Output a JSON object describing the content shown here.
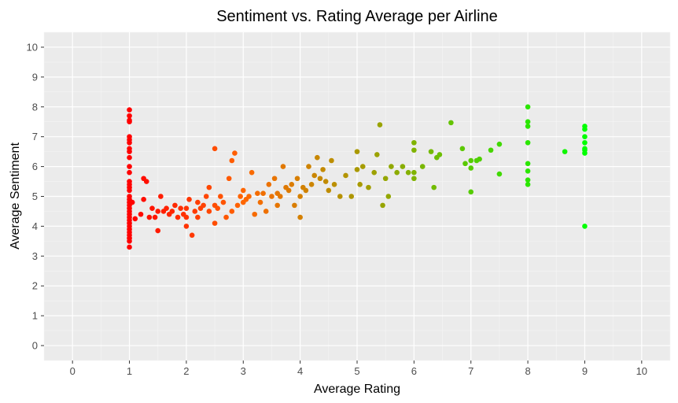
{
  "chart_data": {
    "type": "scatter",
    "title": "Sentiment vs. Rating Average per Airline",
    "xlabel": "Average Rating",
    "ylabel": "Average Sentiment",
    "xlim": [
      -0.5,
      10.5
    ],
    "ylim": [
      -0.5,
      10.5
    ],
    "x_ticks": [
      "0",
      "1",
      "2",
      "3",
      "4",
      "5",
      "6",
      "7",
      "8",
      "9",
      "10"
    ],
    "y_ticks": [
      "0",
      "1",
      "2",
      "3",
      "4",
      "5",
      "6",
      "7",
      "8",
      "9",
      "10"
    ],
    "grid": true,
    "legend": "none",
    "color_scale": {
      "low": "#ff0000",
      "mid": "#ff6600",
      "high": "#00ff00",
      "domain": [
        1,
        9
      ]
    },
    "points": [
      [
        1,
        7.9
      ],
      [
        1,
        7.7
      ],
      [
        1,
        7.55
      ],
      [
        1,
        7.5
      ],
      [
        1,
        7.0
      ],
      [
        1,
        6.9
      ],
      [
        1,
        6.8
      ],
      [
        1,
        6.6
      ],
      [
        1,
        6.5
      ],
      [
        1,
        6.3
      ],
      [
        1,
        6.0
      ],
      [
        1,
        5.8
      ],
      [
        1,
        5.5
      ],
      [
        1,
        5.4
      ],
      [
        1,
        5.3
      ],
      [
        1,
        5.2
      ],
      [
        1,
        5.0
      ],
      [
        1,
        4.9
      ],
      [
        1,
        4.8
      ],
      [
        1,
        4.7
      ],
      [
        1,
        4.6
      ],
      [
        1,
        4.5
      ],
      [
        1,
        4.4
      ],
      [
        1,
        4.3
      ],
      [
        1,
        4.2
      ],
      [
        1,
        4.1
      ],
      [
        1,
        4.0
      ],
      [
        1,
        3.9
      ],
      [
        1,
        3.8
      ],
      [
        1,
        3.7
      ],
      [
        1,
        3.6
      ],
      [
        1,
        3.5
      ],
      [
        1,
        3.3
      ],
      [
        1.05,
        4.8
      ],
      [
        1.1,
        4.25
      ],
      [
        1.2,
        4.4
      ],
      [
        1.25,
        5.6
      ],
      [
        1.3,
        5.5
      ],
      [
        1.25,
        4.9
      ],
      [
        1.35,
        4.3
      ],
      [
        1.4,
        4.6
      ],
      [
        1.45,
        4.3
      ],
      [
        1.5,
        3.85
      ],
      [
        1.5,
        4.5
      ],
      [
        1.55,
        5.0
      ],
      [
        1.6,
        4.5
      ],
      [
        1.65,
        4.6
      ],
      [
        1.7,
        4.4
      ],
      [
        1.75,
        4.5
      ],
      [
        1.8,
        4.7
      ],
      [
        1.85,
        4.3
      ],
      [
        1.9,
        4.6
      ],
      [
        1.95,
        4.4
      ],
      [
        2.0,
        4.3
      ],
      [
        2.0,
        4.6
      ],
      [
        2.05,
        4.9
      ],
      [
        2.0,
        4.0
      ],
      [
        2.1,
        3.7
      ],
      [
        2.15,
        4.5
      ],
      [
        2.2,
        4.3
      ],
      [
        2.2,
        4.8
      ],
      [
        2.25,
        4.6
      ],
      [
        2.3,
        4.7
      ],
      [
        2.35,
        5.0
      ],
      [
        2.4,
        4.5
      ],
      [
        2.4,
        5.3
      ],
      [
        2.5,
        4.1
      ],
      [
        2.5,
        4.7
      ],
      [
        2.5,
        6.6
      ],
      [
        2.55,
        4.6
      ],
      [
        2.6,
        5.0
      ],
      [
        2.65,
        4.8
      ],
      [
        2.7,
        4.3
      ],
      [
        2.75,
        5.6
      ],
      [
        2.8,
        4.5
      ],
      [
        2.8,
        6.2
      ],
      [
        2.85,
        6.45
      ],
      [
        2.9,
        4.7
      ],
      [
        2.95,
        5.0
      ],
      [
        3.0,
        4.8
      ],
      [
        3.0,
        5.2
      ],
      [
        3.05,
        4.9
      ],
      [
        3.1,
        5.0
      ],
      [
        3.15,
        5.8
      ],
      [
        3.2,
        4.4
      ],
      [
        3.25,
        5.1
      ],
      [
        3.3,
        4.8
      ],
      [
        3.35,
        5.1
      ],
      [
        3.4,
        4.5
      ],
      [
        3.45,
        5.4
      ],
      [
        3.5,
        5.0
      ],
      [
        3.55,
        5.6
      ],
      [
        3.6,
        4.7
      ],
      [
        3.6,
        5.1
      ],
      [
        3.65,
        5.0
      ],
      [
        3.7,
        6.0
      ],
      [
        3.75,
        5.3
      ],
      [
        3.8,
        5.2
      ],
      [
        3.85,
        5.4
      ],
      [
        3.9,
        4.7
      ],
      [
        3.95,
        5.6
      ],
      [
        4.0,
        4.3
      ],
      [
        4.0,
        5.0
      ],
      [
        4.05,
        5.3
      ],
      [
        4.1,
        5.2
      ],
      [
        4.15,
        6.0
      ],
      [
        4.2,
        5.4
      ],
      [
        4.25,
        5.7
      ],
      [
        4.3,
        6.3
      ],
      [
        4.35,
        5.6
      ],
      [
        4.4,
        5.9
      ],
      [
        4.45,
        5.5
      ],
      [
        4.5,
        5.2
      ],
      [
        4.55,
        6.2
      ],
      [
        4.6,
        5.4
      ],
      [
        4.7,
        5.0
      ],
      [
        4.8,
        5.7
      ],
      [
        4.9,
        5.0
      ],
      [
        5.0,
        6.5
      ],
      [
        5.0,
        5.9
      ],
      [
        5.05,
        5.4
      ],
      [
        5.1,
        6.0
      ],
      [
        5.2,
        5.3
      ],
      [
        5.3,
        5.8
      ],
      [
        5.35,
        6.4
      ],
      [
        5.4,
        7.4
      ],
      [
        5.45,
        4.7
      ],
      [
        5.5,
        5.6
      ],
      [
        5.55,
        5.0
      ],
      [
        5.6,
        6.0
      ],
      [
        5.7,
        5.8
      ],
      [
        5.8,
        6.0
      ],
      [
        5.9,
        5.8
      ],
      [
        6.0,
        6.8
      ],
      [
        6.0,
        6.55
      ],
      [
        6.0,
        5.8
      ],
      [
        6.0,
        5.6
      ],
      [
        6.15,
        6.0
      ],
      [
        6.3,
        6.5
      ],
      [
        6.35,
        5.3
      ],
      [
        6.4,
        6.3
      ],
      [
        6.45,
        6.4
      ],
      [
        6.65,
        7.47
      ],
      [
        6.85,
        6.6
      ],
      [
        6.9,
        6.1
      ],
      [
        7.0,
        6.2
      ],
      [
        7.0,
        5.95
      ],
      [
        7.0,
        5.15
      ],
      [
        7.1,
        6.2
      ],
      [
        7.15,
        6.25
      ],
      [
        7.35,
        6.55
      ],
      [
        7.5,
        6.75
      ],
      [
        7.5,
        5.75
      ],
      [
        8.0,
        8.0
      ],
      [
        8.0,
        7.5
      ],
      [
        8.0,
        7.35
      ],
      [
        8.0,
        6.8
      ],
      [
        8.0,
        6.1
      ],
      [
        8.0,
        5.85
      ],
      [
        8.0,
        5.55
      ],
      [
        8.0,
        5.4
      ],
      [
        8.65,
        6.5
      ],
      [
        9.0,
        7.35
      ],
      [
        9.0,
        7.25
      ],
      [
        9.0,
        7.0
      ],
      [
        9.0,
        6.8
      ],
      [
        9.0,
        6.6
      ],
      [
        9.0,
        6.55
      ],
      [
        9.0,
        6.45
      ],
      [
        9.0,
        4.0
      ]
    ]
  }
}
